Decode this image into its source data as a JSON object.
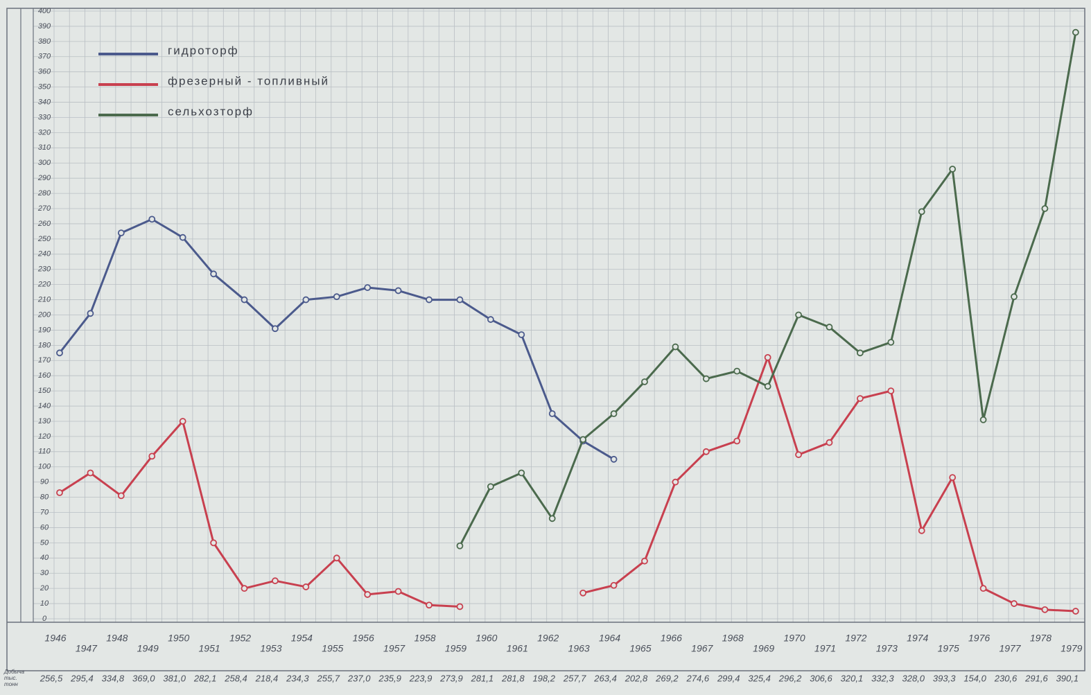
{
  "chart_data": {
    "type": "line",
    "categories": [
      "1946",
      "1947",
      "1948",
      "1949",
      "1950",
      "1951",
      "1952",
      "1953",
      "1954",
      "1955",
      "1956",
      "1957",
      "1958",
      "1959",
      "1960",
      "1961",
      "1962",
      "1963",
      "1964",
      "1965",
      "1966",
      "1967",
      "1968",
      "1969",
      "1970",
      "1971",
      "1972",
      "1973",
      "1974",
      "1975",
      "1976",
      "1977",
      "1978",
      "1979"
    ],
    "series": [
      {
        "name": "гидроторф",
        "color": "#4b5a8c",
        "values": [
          175,
          201,
          254,
          263,
          251,
          227,
          210,
          191,
          210,
          212,
          218,
          216,
          210,
          210,
          197,
          187,
          135,
          117,
          105,
          null,
          null,
          null,
          null,
          null,
          null,
          null,
          null,
          null,
          null,
          null,
          null,
          null,
          null,
          null
        ]
      },
      {
        "name": "фрезерный - топливный",
        "color": "#c8404f",
        "values": [
          83,
          96,
          81,
          107,
          130,
          50,
          20,
          25,
          21,
          40,
          16,
          18,
          9,
          8,
          null,
          null,
          null,
          17,
          22,
          38,
          90,
          110,
          117,
          172,
          108,
          116,
          145,
          150,
          58,
          93,
          20,
          10,
          6,
          5
        ]
      },
      {
        "name": "сельхозторф",
        "color": "#4b6a4d",
        "values": [
          null,
          null,
          null,
          null,
          null,
          null,
          null,
          null,
          null,
          null,
          null,
          null,
          null,
          48,
          87,
          96,
          66,
          118,
          135,
          156,
          179,
          158,
          163,
          153,
          200,
          192,
          175,
          182,
          268,
          296,
          131,
          212,
          270,
          386
        ]
      }
    ],
    "ylim": [
      0,
      400
    ],
    "yticks": [
      0,
      10,
      20,
      30,
      40,
      50,
      60,
      70,
      80,
      90,
      100,
      110,
      120,
      130,
      140,
      150,
      160,
      170,
      180,
      190,
      200,
      210,
      220,
      230,
      240,
      250,
      260,
      270,
      280,
      290,
      300,
      310,
      320,
      330,
      340,
      350,
      360,
      370,
      380,
      390,
      400
    ],
    "grid": true,
    "legend": "top-left",
    "totals_label": [
      "Добыча",
      "тыс.",
      "тонн"
    ],
    "totals": [
      "256,5",
      "295,4",
      "334,8",
      "369,0",
      "381,0",
      "282,1",
      "258,4",
      "218,4",
      "234,3",
      "255,7",
      "237,0",
      "235,9",
      "223,9",
      "273,9",
      "281,1",
      "281,8",
      "198,2",
      "257,7",
      "263,4",
      "202,8",
      "269,2",
      "274,6",
      "299,4",
      "325,4",
      "296,2",
      "306,6",
      "320,1",
      "332,3",
      "328,0",
      "393,3",
      "154,0",
      "230,6",
      "291,6",
      "390,1"
    ]
  }
}
